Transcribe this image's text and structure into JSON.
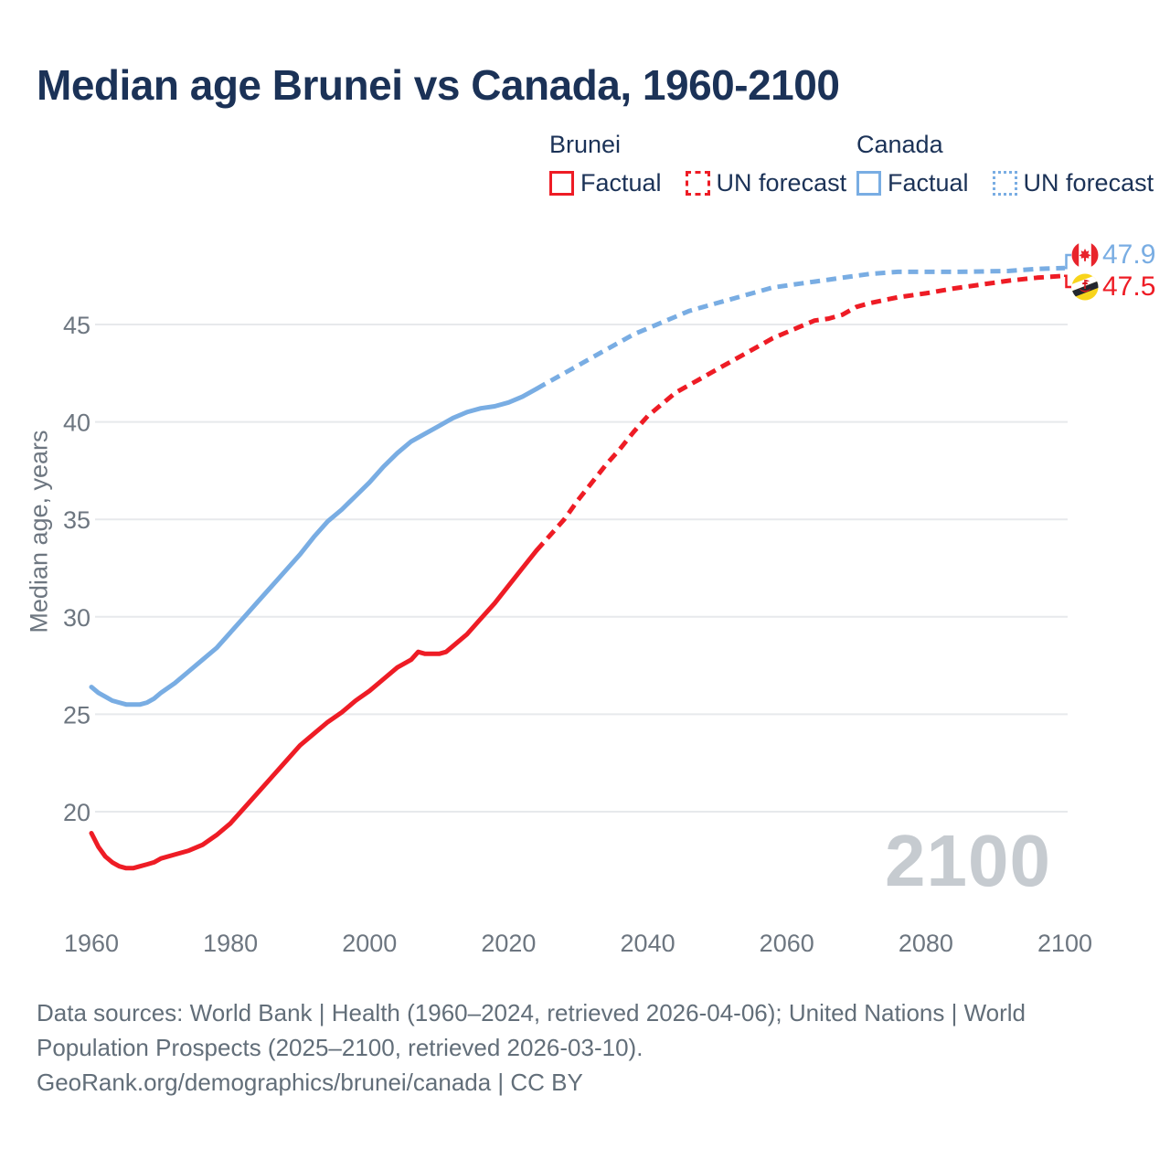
{
  "title": "Median age Brunei vs Canada, 1960-2100",
  "colors": {
    "brunei_red": "#ee1c25",
    "canada_blue": "#79ade3",
    "navy_text": "#1b3257",
    "tick_gray": "#6d7680",
    "footer_gray": "#626e79",
    "watermark_gray": "#c6cbd0",
    "grid_gray": "#e7e9ec"
  },
  "legend": {
    "groups": [
      {
        "name": "Brunei",
        "color": "#ee1c25",
        "items": [
          {
            "label": "Factual",
            "style": "solid"
          },
          {
            "label": "UN forecast",
            "style": "dashed"
          }
        ]
      },
      {
        "name": "Canada",
        "color": "#79ade3",
        "items": [
          {
            "label": "Factual",
            "style": "solid"
          },
          {
            "label": "UN forecast",
            "style": "dotted"
          }
        ]
      }
    ]
  },
  "end_labels": [
    {
      "country": "Canada",
      "value": "47.9",
      "color": "#79ade3",
      "flag": "canada-flag"
    },
    {
      "country": "Brunei",
      "value": "47.5",
      "color": "#ee1c25",
      "flag": "brunei-flag"
    }
  ],
  "watermark": "2100",
  "footer": {
    "lines": [
      "Data sources: World Bank | Health (1960–2024, retrieved 2026-04-06); United Nations | World",
      "Population Prospects (2025–2100, retrieved 2026-03-10).",
      "GeoRank.org/demographics/brunei/canada | CC BY"
    ]
  },
  "chart_data": {
    "type": "line",
    "title": "Median age Brunei vs Canada, 1960-2100",
    "xlabel": "",
    "ylabel": "Median age, years",
    "x_ticks": [
      1960,
      1980,
      2000,
      2020,
      2040,
      2060,
      2080,
      2100
    ],
    "y_ticks": [
      20,
      25,
      30,
      35,
      40,
      45
    ],
    "xlim": [
      1960,
      2100
    ],
    "ylim": [
      16.5,
      49
    ],
    "grid": "horizontal",
    "legend_position": "top-right",
    "series": [
      {
        "name": "Canada factual",
        "color": "#79ade3",
        "dash": false,
        "points": [
          [
            1960,
            26.4
          ],
          [
            1961,
            26.1
          ],
          [
            1962,
            25.9
          ],
          [
            1963,
            25.7
          ],
          [
            1964,
            25.6
          ],
          [
            1965,
            25.5
          ],
          [
            1966,
            25.5
          ],
          [
            1967,
            25.5
          ],
          [
            1968,
            25.6
          ],
          [
            1969,
            25.8
          ],
          [
            1970,
            26.1
          ],
          [
            1972,
            26.6
          ],
          [
            1974,
            27.2
          ],
          [
            1976,
            27.8
          ],
          [
            1978,
            28.4
          ],
          [
            1980,
            29.2
          ],
          [
            1982,
            30.0
          ],
          [
            1984,
            30.8
          ],
          [
            1986,
            31.6
          ],
          [
            1988,
            32.4
          ],
          [
            1990,
            33.2
          ],
          [
            1992,
            34.1
          ],
          [
            1994,
            34.9
          ],
          [
            1996,
            35.5
          ],
          [
            1998,
            36.2
          ],
          [
            2000,
            36.9
          ],
          [
            2002,
            37.7
          ],
          [
            2004,
            38.4
          ],
          [
            2006,
            39.0
          ],
          [
            2008,
            39.4
          ],
          [
            2010,
            39.8
          ],
          [
            2012,
            40.2
          ],
          [
            2014,
            40.5
          ],
          [
            2016,
            40.7
          ],
          [
            2018,
            40.8
          ],
          [
            2020,
            41.0
          ],
          [
            2022,
            41.3
          ],
          [
            2024,
            41.7
          ]
        ]
      },
      {
        "name": "Canada UN forecast",
        "color": "#79ade3",
        "dash": true,
        "points": [
          [
            2024,
            41.7
          ],
          [
            2026,
            42.1
          ],
          [
            2028,
            42.5
          ],
          [
            2030,
            42.9
          ],
          [
            2032,
            43.3
          ],
          [
            2034,
            43.7
          ],
          [
            2036,
            44.1
          ],
          [
            2038,
            44.5
          ],
          [
            2040,
            44.8
          ],
          [
            2042,
            45.1
          ],
          [
            2044,
            45.4
          ],
          [
            2046,
            45.7
          ],
          [
            2048,
            45.9
          ],
          [
            2050,
            46.1
          ],
          [
            2052,
            46.3
          ],
          [
            2054,
            46.5
          ],
          [
            2056,
            46.7
          ],
          [
            2058,
            46.9
          ],
          [
            2060,
            47.0
          ],
          [
            2062,
            47.1
          ],
          [
            2064,
            47.2
          ],
          [
            2066,
            47.3
          ],
          [
            2068,
            47.4
          ],
          [
            2070,
            47.5
          ],
          [
            2072,
            47.6
          ],
          [
            2074,
            47.65
          ],
          [
            2076,
            47.7
          ],
          [
            2080,
            47.7
          ],
          [
            2084,
            47.7
          ],
          [
            2088,
            47.72
          ],
          [
            2092,
            47.75
          ],
          [
            2094,
            47.8
          ],
          [
            2096,
            47.85
          ],
          [
            2100,
            47.9
          ]
        ]
      },
      {
        "name": "Brunei factual",
        "color": "#ee1c25",
        "dash": false,
        "points": [
          [
            1960,
            18.9
          ],
          [
            1961,
            18.2
          ],
          [
            1962,
            17.7
          ],
          [
            1963,
            17.4
          ],
          [
            1964,
            17.2
          ],
          [
            1965,
            17.1
          ],
          [
            1966,
            17.1
          ],
          [
            1967,
            17.2
          ],
          [
            1968,
            17.3
          ],
          [
            1969,
            17.4
          ],
          [
            1970,
            17.6
          ],
          [
            1972,
            17.8
          ],
          [
            1974,
            18.0
          ],
          [
            1976,
            18.3
          ],
          [
            1978,
            18.8
          ],
          [
            1980,
            19.4
          ],
          [
            1982,
            20.2
          ],
          [
            1984,
            21.0
          ],
          [
            1986,
            21.8
          ],
          [
            1988,
            22.6
          ],
          [
            1990,
            23.4
          ],
          [
            1992,
            24.0
          ],
          [
            1994,
            24.6
          ],
          [
            1996,
            25.1
          ],
          [
            1998,
            25.7
          ],
          [
            2000,
            26.2
          ],
          [
            2002,
            26.8
          ],
          [
            2004,
            27.4
          ],
          [
            2006,
            27.8
          ],
          [
            2007,
            28.2
          ],
          [
            2008,
            28.1
          ],
          [
            2009,
            28.1
          ],
          [
            2010,
            28.1
          ],
          [
            2011,
            28.2
          ],
          [
            2012,
            28.5
          ],
          [
            2014,
            29.1
          ],
          [
            2016,
            29.9
          ],
          [
            2018,
            30.7
          ],
          [
            2020,
            31.6
          ],
          [
            2022,
            32.5
          ],
          [
            2024,
            33.4
          ]
        ]
      },
      {
        "name": "Brunei UN forecast",
        "color": "#ee1c25",
        "dash": true,
        "points": [
          [
            2024,
            33.4
          ],
          [
            2026,
            34.2
          ],
          [
            2028,
            35.0
          ],
          [
            2030,
            36.0
          ],
          [
            2032,
            36.9
          ],
          [
            2034,
            37.8
          ],
          [
            2036,
            38.6
          ],
          [
            2038,
            39.5
          ],
          [
            2040,
            40.3
          ],
          [
            2042,
            40.9
          ],
          [
            2044,
            41.5
          ],
          [
            2046,
            41.9
          ],
          [
            2048,
            42.3
          ],
          [
            2050,
            42.7
          ],
          [
            2052,
            43.1
          ],
          [
            2054,
            43.5
          ],
          [
            2056,
            43.9
          ],
          [
            2058,
            44.3
          ],
          [
            2060,
            44.6
          ],
          [
            2062,
            44.9
          ],
          [
            2064,
            45.2
          ],
          [
            2066,
            45.3
          ],
          [
            2068,
            45.5
          ],
          [
            2070,
            45.9
          ],
          [
            2072,
            46.1
          ],
          [
            2076,
            46.4
          ],
          [
            2080,
            46.6
          ],
          [
            2084,
            46.85
          ],
          [
            2088,
            47.05
          ],
          [
            2092,
            47.25
          ],
          [
            2096,
            47.4
          ],
          [
            2098,
            47.45
          ],
          [
            2100,
            47.5
          ]
        ]
      }
    ]
  }
}
